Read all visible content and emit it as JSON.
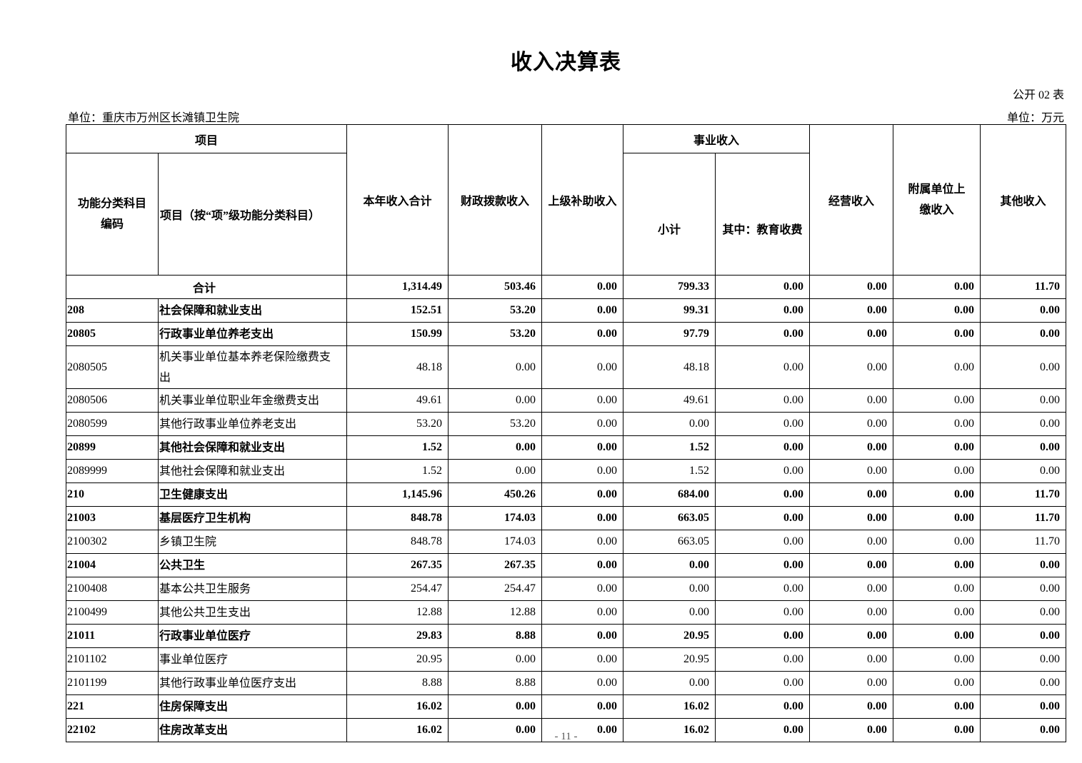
{
  "title": "收入决算表",
  "form_no": "公开 02 表",
  "unit_org": "单位：重庆市万州区长滩镇卫生院",
  "unit_money": "单位：万元",
  "header": {
    "project": "项目",
    "code": "功能分类科目编码",
    "name": "项目（按“项”级功能分类科目）",
    "total_income": "本年收入合计",
    "fiscal": "财政拨款收入",
    "superior": "上级补助收入",
    "business_group": "事业收入",
    "subtotal": "小计",
    "education": "其中：教育收费",
    "operating": "经营收入",
    "affiliated": "附属单位上缴收入",
    "other": "其他收入"
  },
  "total_row": {
    "label": "合计",
    "values": [
      "1,314.49",
      "503.46",
      "0.00",
      "799.33",
      "0.00",
      "0.00",
      "0.00",
      "11.70"
    ]
  },
  "rows": [
    {
      "code": "208",
      "name": "社会保障和就业支出",
      "bold": true,
      "values": [
        "152.51",
        "53.20",
        "0.00",
        "99.31",
        "0.00",
        "0.00",
        "0.00",
        "0.00"
      ]
    },
    {
      "code": "20805",
      "name": "行政事业单位养老支出",
      "bold": true,
      "values": [
        "150.99",
        "53.20",
        "0.00",
        "97.79",
        "0.00",
        "0.00",
        "0.00",
        "0.00"
      ]
    },
    {
      "code": "2080505",
      "name": "机关事业单位基本养老保险缴费支出",
      "bold": false,
      "values": [
        "48.18",
        "0.00",
        "0.00",
        "48.18",
        "0.00",
        "0.00",
        "0.00",
        "0.00"
      ]
    },
    {
      "code": "2080506",
      "name": "机关事业单位职业年金缴费支出",
      "bold": false,
      "values": [
        "49.61",
        "0.00",
        "0.00",
        "49.61",
        "0.00",
        "0.00",
        "0.00",
        "0.00"
      ]
    },
    {
      "code": "2080599",
      "name": "其他行政事业单位养老支出",
      "bold": false,
      "values": [
        "53.20",
        "53.20",
        "0.00",
        "0.00",
        "0.00",
        "0.00",
        "0.00",
        "0.00"
      ]
    },
    {
      "code": "20899",
      "name": "其他社会保障和就业支出",
      "bold": true,
      "values": [
        "1.52",
        "0.00",
        "0.00",
        "1.52",
        "0.00",
        "0.00",
        "0.00",
        "0.00"
      ]
    },
    {
      "code": "2089999",
      "name": "其他社会保障和就业支出",
      "bold": false,
      "values": [
        "1.52",
        "0.00",
        "0.00",
        "1.52",
        "0.00",
        "0.00",
        "0.00",
        "0.00"
      ]
    },
    {
      "code": "210",
      "name": "卫生健康支出",
      "bold": true,
      "values": [
        "1,145.96",
        "450.26",
        "0.00",
        "684.00",
        "0.00",
        "0.00",
        "0.00",
        "11.70"
      ]
    },
    {
      "code": "21003",
      "name": "基层医疗卫生机构",
      "bold": true,
      "values": [
        "848.78",
        "174.03",
        "0.00",
        "663.05",
        "0.00",
        "0.00",
        "0.00",
        "11.70"
      ]
    },
    {
      "code": "2100302",
      "name": "乡镇卫生院",
      "bold": false,
      "values": [
        "848.78",
        "174.03",
        "0.00",
        "663.05",
        "0.00",
        "0.00",
        "0.00",
        "11.70"
      ]
    },
    {
      "code": "21004",
      "name": "公共卫生",
      "bold": true,
      "values": [
        "267.35",
        "267.35",
        "0.00",
        "0.00",
        "0.00",
        "0.00",
        "0.00",
        "0.00"
      ]
    },
    {
      "code": "2100408",
      "name": "基本公共卫生服务",
      "bold": false,
      "values": [
        "254.47",
        "254.47",
        "0.00",
        "0.00",
        "0.00",
        "0.00",
        "0.00",
        "0.00"
      ]
    },
    {
      "code": "2100499",
      "name": "其他公共卫生支出",
      "bold": false,
      "values": [
        "12.88",
        "12.88",
        "0.00",
        "0.00",
        "0.00",
        "0.00",
        "0.00",
        "0.00"
      ]
    },
    {
      "code": "21011",
      "name": "行政事业单位医疗",
      "bold": true,
      "values": [
        "29.83",
        "8.88",
        "0.00",
        "20.95",
        "0.00",
        "0.00",
        "0.00",
        "0.00"
      ]
    },
    {
      "code": "2101102",
      "name": "事业单位医疗",
      "bold": false,
      "values": [
        "20.95",
        "0.00",
        "0.00",
        "20.95",
        "0.00",
        "0.00",
        "0.00",
        "0.00"
      ]
    },
    {
      "code": "2101199",
      "name": "其他行政事业单位医疗支出",
      "bold": false,
      "values": [
        "8.88",
        "8.88",
        "0.00",
        "0.00",
        "0.00",
        "0.00",
        "0.00",
        "0.00"
      ]
    },
    {
      "code": "221",
      "name": "住房保障支出",
      "bold": true,
      "values": [
        "16.02",
        "0.00",
        "0.00",
        "16.02",
        "0.00",
        "0.00",
        "0.00",
        "0.00"
      ]
    },
    {
      "code": "22102",
      "name": "住房改革支出",
      "bold": true,
      "values": [
        "16.02",
        "0.00",
        "0.00",
        "16.02",
        "0.00",
        "0.00",
        "0.00",
        "0.00"
      ]
    }
  ],
  "page_number": "- 11 -"
}
